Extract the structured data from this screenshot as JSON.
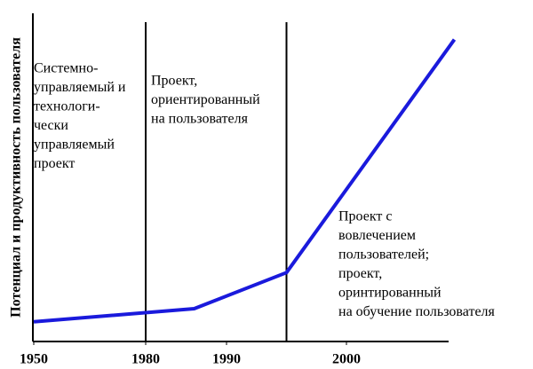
{
  "chart_data": {
    "type": "line",
    "ylabel": "Потенциал и продуктивность пользователя",
    "x": [
      1950,
      1986,
      1995,
      2009
    ],
    "values": [
      6,
      10,
      21,
      92
    ],
    "color": "#1a1adc",
    "xlim": [
      1950,
      2008
    ],
    "xticks": [
      1950,
      1980,
      1990,
      2000
    ],
    "ylim": [
      0,
      100
    ],
    "vlines": [
      1980,
      1995
    ],
    "annotations": [
      {
        "lines": [
          "Системно-",
          "управляемый и",
          "технологи-",
          "чески",
          "управляемый",
          "проект"
        ]
      },
      {
        "lines": [
          "Проект,",
          "ориентированный",
          "на пользователя"
        ]
      },
      {
        "lines": [
          "Проект с",
          "вовлечением",
          "пользователей;",
          "проект,",
          "оринтированный",
          "на обучение пользователя"
        ]
      }
    ]
  }
}
